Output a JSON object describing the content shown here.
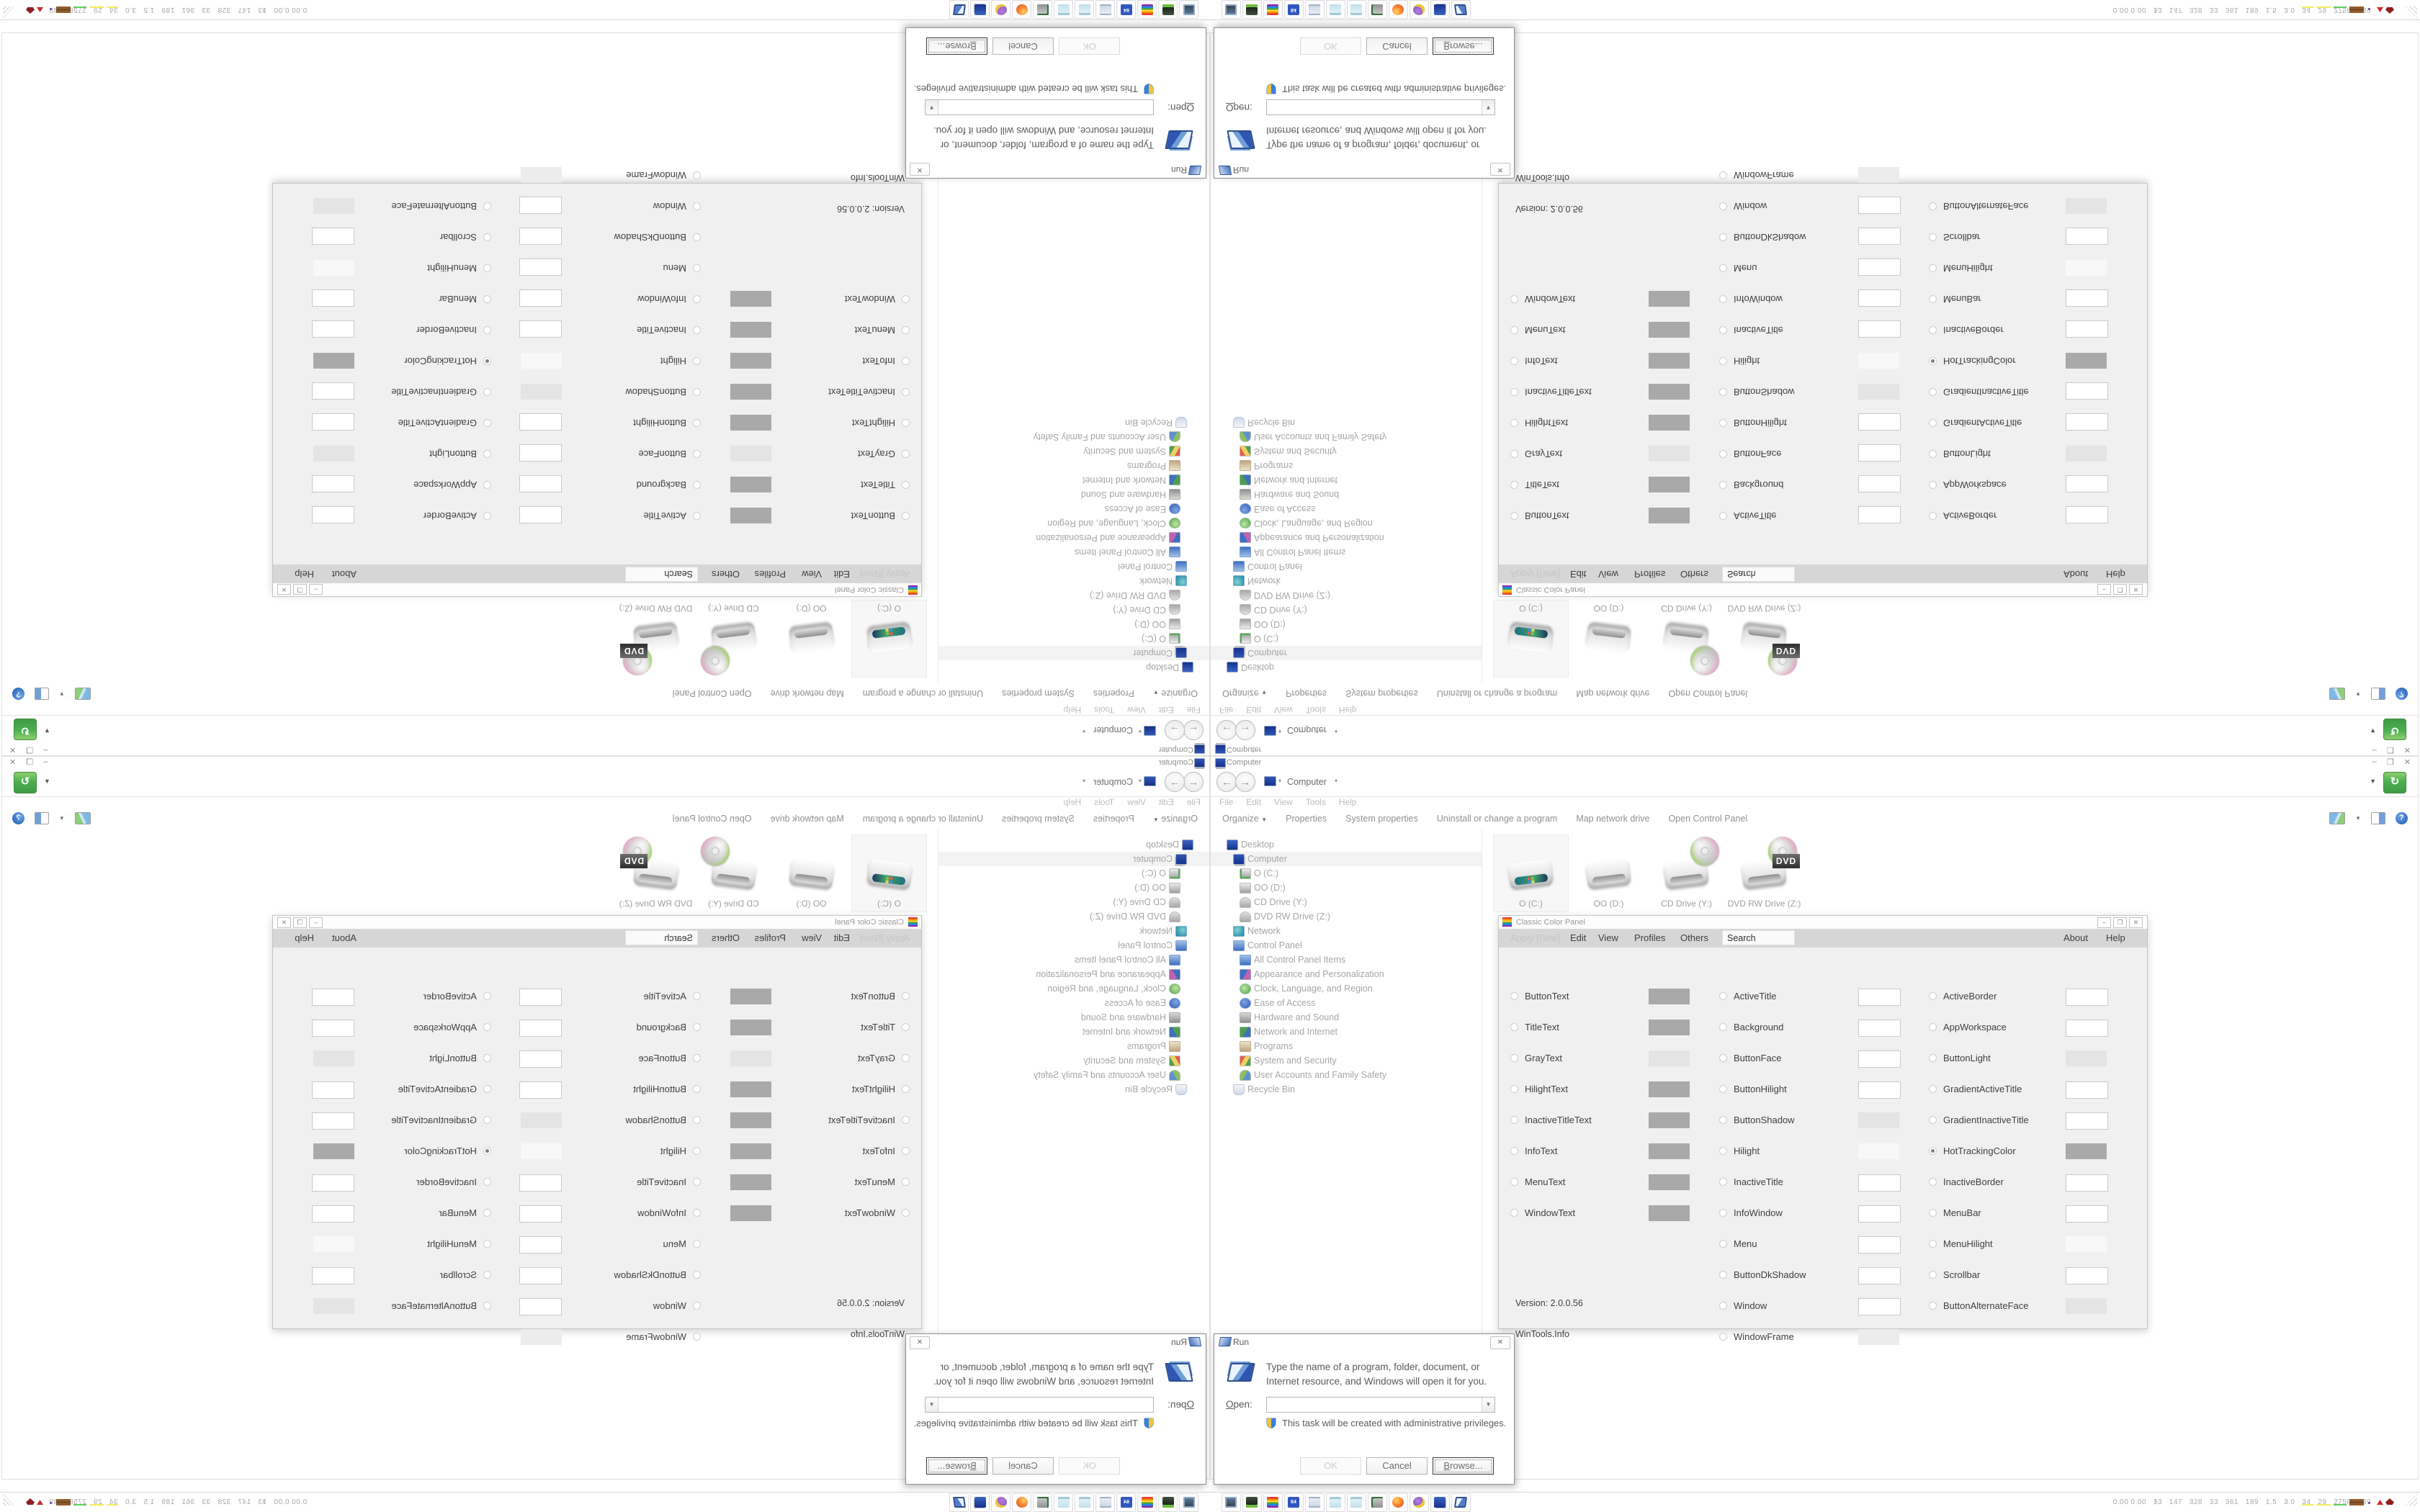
{
  "explorer": {
    "title": "Computer",
    "caption_buttons": [
      "–",
      "❐",
      "✕"
    ],
    "breadcrumb": {
      "item": "Computer",
      "sep": "▾"
    },
    "refresh_glyph": "↻",
    "menu": [
      "File",
      "Edit",
      "View",
      "Tools",
      "Help"
    ],
    "organize": "Organize",
    "organize_caret": "▼",
    "commands": [
      "Properties",
      "System properties",
      "Uninstall or change a program",
      "Map network drive",
      "Open Control Panel"
    ],
    "help_glyph": "?",
    "tree": [
      {
        "label": "Desktop",
        "level": 0,
        "icon": "desktop",
        "selected": false
      },
      {
        "label": "Computer",
        "level": 1,
        "icon": "computer",
        "selected": true
      },
      {
        "label": "O (C:)",
        "level": 2,
        "icon": "drive-win",
        "selected": false
      },
      {
        "label": "OO (D:)",
        "level": 2,
        "icon": "drive",
        "selected": false
      },
      {
        "label": "CD Drive (Y:)",
        "level": 2,
        "icon": "cd",
        "selected": false
      },
      {
        "label": "DVD RW Drive (Z:)",
        "level": 2,
        "icon": "cd",
        "selected": false
      },
      {
        "label": "Network",
        "level": 1,
        "icon": "network",
        "selected": false
      },
      {
        "label": "Control Panel",
        "level": 1,
        "icon": "cpanel",
        "selected": false
      },
      {
        "label": "All Control Panel Items",
        "level": 2,
        "icon": "cpanel",
        "selected": false
      },
      {
        "label": "Appearance and Personalization",
        "level": 2,
        "icon": "appearance",
        "selected": false
      },
      {
        "label": "Clock, Language, and Region",
        "level": 2,
        "icon": "clock",
        "selected": false
      },
      {
        "label": "Ease of Access",
        "level": 2,
        "icon": "ease",
        "selected": false
      },
      {
        "label": "Hardware and Sound",
        "level": 2,
        "icon": "hardware",
        "selected": false
      },
      {
        "label": "Network and Internet",
        "level": 2,
        "icon": "netinet",
        "selected": false
      },
      {
        "label": "Programs",
        "level": 2,
        "icon": "programs",
        "selected": false
      },
      {
        "label": "System and Security",
        "level": 2,
        "icon": "syssec",
        "selected": false
      },
      {
        "label": "User Accounts and Family Safety",
        "level": 2,
        "icon": "users",
        "selected": false
      },
      {
        "label": "Recycle Bin",
        "level": 1,
        "icon": "recycle",
        "selected": false
      }
    ],
    "drives": [
      {
        "name": "O (C:)",
        "kind": "hdd-windows",
        "selected": true
      },
      {
        "name": "OO (D:)",
        "kind": "hdd",
        "selected": false
      },
      {
        "name": "CD Drive (Y:)",
        "kind": "cd",
        "selected": false
      },
      {
        "name": "DVD RW Drive (Z:)",
        "kind": "dvd",
        "selected": false
      }
    ]
  },
  "ccp": {
    "title": "Classic Color Panel",
    "caption_buttons": [
      "–",
      "❐",
      "✕"
    ],
    "menu_disabled": "Apply [Now]",
    "menu": [
      "Edit",
      "View",
      "Profiles",
      "Others"
    ],
    "search_value": "Search",
    "menu_right": [
      "About",
      "Help"
    ],
    "version": "Version: 2.0.0.56",
    "site": "WinTools.Info",
    "swatch_colors": {
      "gray": "#a9a9a9",
      "lightgray": "#e4e4e4",
      "verylight": "#f8f8f8",
      "white": "#ffffff",
      "frame": "#ececec"
    },
    "grid": [
      [
        {
          "label": "ButtonText",
          "swatch": "gray"
        },
        {
          "label": "ActiveTitle",
          "swatch": "white"
        },
        {
          "label": "ActiveBorder",
          "swatch": "white"
        }
      ],
      [
        {
          "label": "TitleText",
          "swatch": "gray"
        },
        {
          "label": "Background",
          "swatch": "white"
        },
        {
          "label": "AppWorkspace",
          "swatch": "white"
        }
      ],
      [
        {
          "label": "GrayText",
          "swatch": "lightgray"
        },
        {
          "label": "ButtonFace",
          "swatch": "white"
        },
        {
          "label": "ButtonLight",
          "swatch": "lightgray"
        }
      ],
      [
        {
          "label": "HilightText",
          "swatch": "gray"
        },
        {
          "label": "ButtonHilight",
          "swatch": "white"
        },
        {
          "label": "GradientActiveTitle",
          "swatch": "white"
        }
      ],
      [
        {
          "label": "InactiveTitleText",
          "swatch": "gray"
        },
        {
          "label": "ButtonShadow",
          "swatch": "lightgray"
        },
        {
          "label": "GradientInactiveTitle",
          "swatch": "white"
        }
      ],
      [
        {
          "label": "InfoText",
          "swatch": "gray"
        },
        {
          "label": "Hilight",
          "swatch": "verylight"
        },
        {
          "label": "HotTrackingColor",
          "swatch": "gray",
          "selected": true
        }
      ],
      [
        {
          "label": "MenuText",
          "swatch": "gray"
        },
        {
          "label": "InactiveTitle",
          "swatch": "white"
        },
        {
          "label": "InactiveBorder",
          "swatch": "white"
        }
      ],
      [
        {
          "label": "WindowText",
          "swatch": "gray"
        },
        {
          "label": "InfoWindow",
          "swatch": "white"
        },
        {
          "label": "MenuBar",
          "swatch": "white"
        }
      ],
      [
        null,
        {
          "label": "Menu",
          "swatch": "white"
        },
        {
          "label": "MenuHilight",
          "swatch": "verylight"
        }
      ],
      [
        null,
        {
          "label": "ButtonDkShadow",
          "swatch": "white"
        },
        {
          "label": "Scrollbar",
          "swatch": "white"
        }
      ],
      [
        null,
        {
          "label": "Window",
          "swatch": "white"
        },
        {
          "label": "ButtonAlternateFace",
          "swatch": "lightgray"
        }
      ],
      [
        null,
        {
          "label": "WindowFrame",
          "swatch": "frame"
        },
        null
      ]
    ]
  },
  "run": {
    "title": "Run",
    "close_glyph": "✕",
    "message": "Type the name of a program, folder, document, or Internet resource, and Windows will open it for you.",
    "open_accel": "O",
    "open_rest": "pen:",
    "combo_value": "",
    "combo_caret": "▼",
    "admin_note": "This task will be created with administrative privileges.",
    "ok_label": "OK",
    "cancel_label": "Cancel",
    "browse_accel": "B",
    "browse_rest": "rowse..."
  },
  "taskbar": {
    "icons": [
      {
        "name": "system-monitor-app",
        "glyph": "sysmon"
      },
      {
        "name": "emulator-cartridge-app",
        "glyph": "cartridge"
      },
      {
        "name": "classic-color-panel-app",
        "glyph": "rainbow"
      },
      {
        "name": "commodore-64-app",
        "glyph": "floppy",
        "text": "64"
      },
      {
        "name": "document-scroll-app",
        "glyph": "scroll"
      },
      {
        "name": "notepad-app",
        "glyph": "notepad"
      },
      {
        "name": "notepad-app-2",
        "glyph": "notepad"
      },
      {
        "name": "screen-capture-app",
        "glyph": "screenpen"
      },
      {
        "name": "firefox-browser",
        "glyph": "firefox"
      },
      {
        "name": "purple-avatar-app",
        "glyph": "face"
      },
      {
        "name": "computer-app",
        "glyph": "computer"
      },
      {
        "name": "run-dialog-app",
        "glyph": "run"
      }
    ],
    "tray_chevron": "˄",
    "tray_stats": "0.00 0.00   13   147   328   33   361   189   1.5   3.0   34   29   2758 3839"
  },
  "colors": {
    "accent_refresh_green": "#4caf50",
    "window_chrome": "#ffffff",
    "ccp_menuband": "#d6d6d6",
    "ccp_body": "#f0f0f0",
    "swatch_gray": "#a9a9a9",
    "text_muted": "#9a9a9a"
  }
}
